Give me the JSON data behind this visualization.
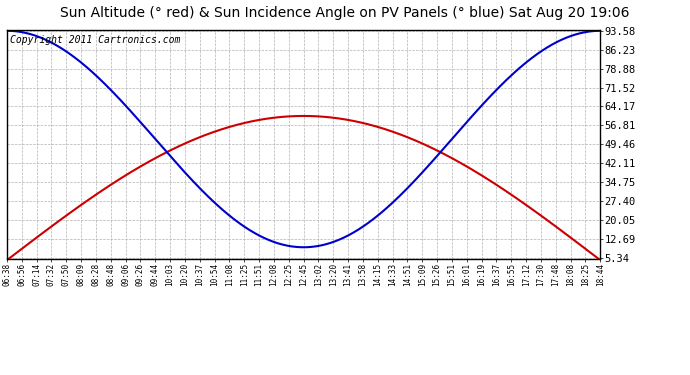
{
  "title": "Sun Altitude (° red) & Sun Incidence Angle on PV Panels (° blue) Sat Aug 20 19:06",
  "copyright_text": "Copyright 2011 Cartronics.com",
  "y_ticks": [
    5.34,
    12.69,
    20.05,
    27.4,
    34.75,
    42.11,
    49.46,
    56.81,
    64.17,
    71.52,
    78.88,
    86.23,
    93.58
  ],
  "x_labels": [
    "06:38",
    "06:56",
    "07:14",
    "07:32",
    "07:50",
    "08:09",
    "08:28",
    "08:48",
    "09:06",
    "09:26",
    "09:44",
    "10:03",
    "10:20",
    "10:37",
    "10:54",
    "11:08",
    "11:25",
    "11:51",
    "12:08",
    "12:25",
    "12:45",
    "13:02",
    "13:20",
    "13:41",
    "13:58",
    "14:15",
    "14:33",
    "14:51",
    "15:09",
    "15:26",
    "15:51",
    "16:01",
    "16:19",
    "16:37",
    "16:55",
    "17:12",
    "17:30",
    "17:48",
    "18:08",
    "18:25",
    "18:44"
  ],
  "y_min": 5.34,
  "y_max": 93.58,
  "red_line_color": "#cc0000",
  "blue_line_color": "#0000cc",
  "grid_color": "#aaaaaa",
  "background_color": "#ffffff",
  "plot_bg_color": "#ffffff",
  "title_fontsize": 10,
  "copyright_fontsize": 7,
  "red_peak": 60.5,
  "red_min": 4.5,
  "blue_min_val": 9.5,
  "blue_max_val": 93.58,
  "line_width": 1.5
}
